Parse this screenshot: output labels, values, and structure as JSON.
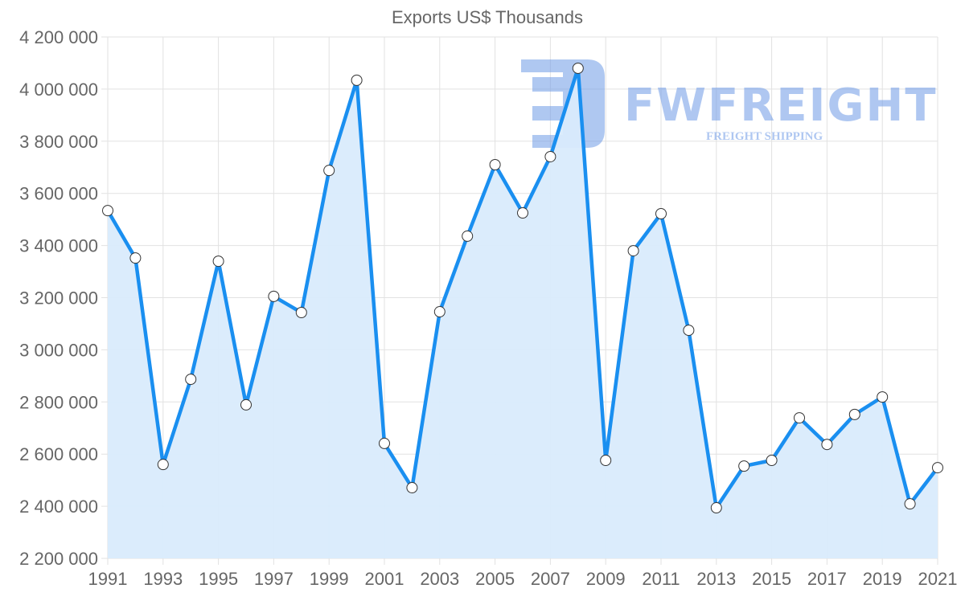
{
  "chart_data": {
    "type": "line",
    "title": "Exports US$ Thousands",
    "xlabel": "",
    "ylabel": "",
    "ylim": [
      2200000,
      4200000
    ],
    "ytick_step": 200000,
    "x": [
      1991,
      1992,
      1993,
      1994,
      1995,
      1996,
      1997,
      1998,
      1999,
      2000,
      2001,
      2002,
      2003,
      2004,
      2005,
      2006,
      2007,
      2008,
      2009,
      2010,
      2011,
      2012,
      2013,
      2014,
      2015,
      2016,
      2017,
      2018,
      2019,
      2020,
      2021
    ],
    "xtick_labels": [
      "1991",
      "1993",
      "1995",
      "1997",
      "1999",
      "2001",
      "2003",
      "2005",
      "2007",
      "2009",
      "2011",
      "2013",
      "2015",
      "2017",
      "2019",
      "2021"
    ],
    "ytick_labels": [
      "2 200 000",
      "2 400 000",
      "2 600 000",
      "2 800 000",
      "3 000 000",
      "3 200 000",
      "3 400 000",
      "3 600 000",
      "3 800 000",
      "4 000 000",
      "4 200 000"
    ],
    "series": [
      {
        "name": "Exports US$ Thousands",
        "values": [
          3534000,
          3352000,
          2560000,
          2887000,
          3340000,
          2789000,
          3205000,
          3143000,
          3688000,
          4034000,
          2641000,
          2471000,
          3146000,
          3436000,
          3710000,
          3525000,
          3741000,
          4080000,
          2576000,
          3380000,
          3522000,
          3075000,
          2394000,
          2554000,
          2576000,
          2739000,
          2637000,
          2752000,
          2819000,
          2409000,
          2548000
        ],
        "line_color": "#1a8ff0",
        "fill_color": "#d9ebfc"
      }
    ],
    "grid": true,
    "legend": "none"
  },
  "watermark": {
    "brand": "FWFREIGHT",
    "tagline": "FREIGHT SHIPPING",
    "color": "#6e9be6"
  }
}
